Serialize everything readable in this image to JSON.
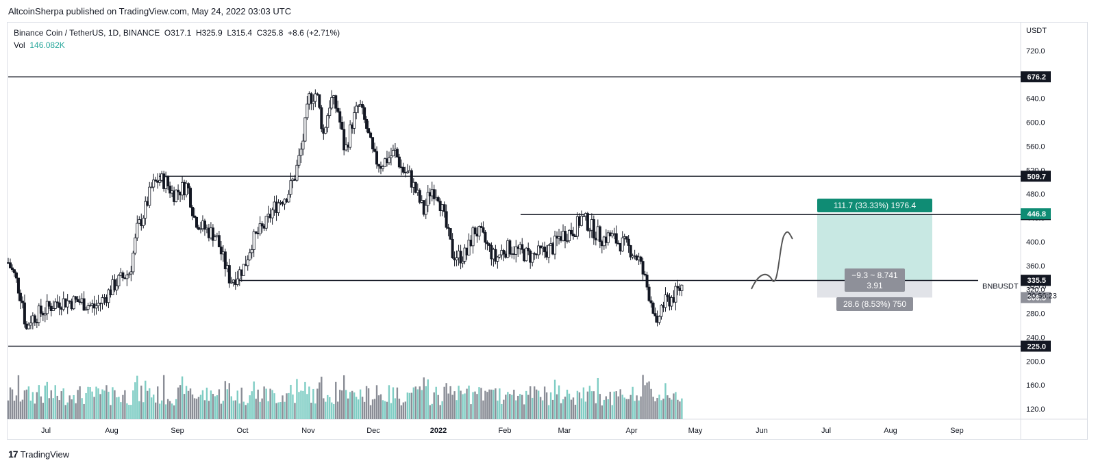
{
  "publish_line": "AltcoinSherpa published on TradingView.com, May 24, 2022 03:03 UTC",
  "legend": {
    "symbol": "Binance Coin / TetherUS, 1D, BINANCE",
    "o": "O317.1",
    "h": "H325.9",
    "l": "L315.4",
    "c": "C325.8",
    "chg": "+8.6 (+2.71%)",
    "vol_label": "Vol",
    "vol_value": "146.082K"
  },
  "brand": {
    "logo": "17",
    "name": "TradingView"
  },
  "colors": {
    "up": "#26a69a",
    "down": "#ef5350",
    "profit_zone": "#c8e8e3",
    "loss_zone": "#e1e3e8",
    "profit_label": "#0f8c74",
    "loss_label": "#8e9099",
    "candle": "#131722"
  },
  "chart_data": {
    "type": "candlestick",
    "title": "Binance Coin / TetherUS, 1D, BINANCE",
    "ylabel": "USDT",
    "ylim": [
      100,
      740
    ],
    "y_ticks": [
      "720.0",
      "680.0",
      "640.0",
      "600.0",
      "560.0",
      "520.0",
      "480.0",
      "440.0",
      "400.0",
      "360.0",
      "320.0",
      "280.0",
      "240.0",
      "200.0",
      "160.0",
      "120.0"
    ],
    "x_ticks": [
      "Jul",
      "Aug",
      "Sep",
      "Oct",
      "Nov",
      "Dec",
      "2022",
      "Feb",
      "Mar",
      "Apr",
      "May",
      "Jun",
      "Jul",
      "Aug",
      "Sep"
    ],
    "series_path": [
      [
        2021.45,
        365
      ],
      [
        2021.46,
        340
      ],
      [
        2021.47,
        300
      ],
      [
        2021.475,
        250
      ],
      [
        2021.48,
        270
      ],
      [
        2021.5,
        285
      ],
      [
        2021.52,
        300
      ],
      [
        2021.55,
        300
      ],
      [
        2021.57,
        290
      ],
      [
        2021.58,
        300
      ],
      [
        2021.6,
        330
      ],
      [
        2021.62,
        350
      ],
      [
        2021.63,
        420
      ],
      [
        2021.64,
        450
      ],
      [
        2021.65,
        490
      ],
      [
        2021.66,
        505
      ],
      [
        2021.67,
        500
      ],
      [
        2021.68,
        480
      ],
      [
        2021.7,
        495
      ],
      [
        2021.71,
        440
      ],
      [
        2021.72,
        425
      ],
      [
        2021.74,
        410
      ],
      [
        2021.75,
        370
      ],
      [
        2021.76,
        335
      ],
      [
        2021.77,
        345
      ],
      [
        2021.78,
        360
      ],
      [
        2021.79,
        400
      ],
      [
        2021.81,
        430
      ],
      [
        2021.82,
        455
      ],
      [
        2021.83,
        470
      ],
      [
        2021.84,
        480
      ],
      [
        2021.85,
        510
      ],
      [
        2021.86,
        560
      ],
      [
        2021.87,
        640
      ],
      [
        2021.88,
        650
      ],
      [
        2021.89,
        580
      ],
      [
        2021.9,
        640
      ],
      [
        2021.91,
        620
      ],
      [
        2021.92,
        550
      ],
      [
        2021.93,
        600
      ],
      [
        2021.94,
        630
      ],
      [
        2021.95,
        590
      ],
      [
        2021.96,
        540
      ],
      [
        2021.97,
        530
      ],
      [
        2021.98,
        540
      ],
      [
        2021.99,
        550
      ],
      [
        2022.0,
        520
      ],
      [
        2022.01,
        510
      ],
      [
        2022.02,
        480
      ],
      [
        2022.03,
        450
      ],
      [
        2022.04,
        490
      ],
      [
        2022.05,
        480
      ],
      [
        2022.06,
        430
      ],
      [
        2022.07,
        380
      ],
      [
        2022.08,
        375
      ],
      [
        2022.09,
        380
      ],
      [
        2022.1,
        420
      ],
      [
        2022.11,
        410
      ],
      [
        2022.12,
        390
      ],
      [
        2022.13,
        370
      ],
      [
        2022.14,
        385
      ],
      [
        2022.15,
        390
      ],
      [
        2022.16,
        385
      ],
      [
        2022.18,
        375
      ],
      [
        2022.19,
        380
      ],
      [
        2022.21,
        390
      ],
      [
        2022.22,
        410
      ],
      [
        2022.24,
        420
      ],
      [
        2022.25,
        440
      ],
      [
        2022.26,
        430
      ],
      [
        2022.27,
        415
      ],
      [
        2022.28,
        405
      ],
      [
        2022.29,
        410
      ],
      [
        2022.3,
        400
      ],
      [
        2022.31,
        395
      ],
      [
        2022.32,
        385
      ],
      [
        2022.33,
        370
      ],
      [
        2022.34,
        330
      ],
      [
        2022.35,
        290
      ],
      [
        2022.355,
        245
      ],
      [
        2022.36,
        290
      ],
      [
        2022.37,
        300
      ],
      [
        2022.38,
        310
      ],
      [
        2022.39,
        326
      ]
    ],
    "volume_note": "Volume histogram bars under candles",
    "price_lines": [
      {
        "value": 676.2,
        "label": "676.2"
      },
      {
        "value": 509.7,
        "label": "509.7"
      },
      {
        "value": 445.4,
        "label": "445.4"
      },
      {
        "value": 335.1,
        "label": "335.1"
      },
      {
        "value": 225.0,
        "label": "225.0"
      }
    ],
    "axis_badges": [
      {
        "value": 446.8,
        "label": "446.8",
        "kind": "profit"
      },
      {
        "value": 335.5,
        "label": "335.5",
        "kind": "dark"
      },
      {
        "value": 306.5,
        "label": "306.5",
        "kind": "loss"
      }
    ],
    "last_price": {
      "value": 325.8,
      "label": "325.8",
      "countdown": "20:56:23",
      "symbol": "BNBUSDT"
    },
    "position": {
      "entry": 335.1,
      "target": 446.8,
      "stop": 306.5,
      "profit_label": "111.7 (33.33%) 1976.4",
      "loss_label": "28.6 (8.53%) 750",
      "entry_label_1": "−9.3 ~ 8.741",
      "entry_label_2": "3.91"
    },
    "projection_note": "hand-drawn curve upward toward ~410"
  }
}
